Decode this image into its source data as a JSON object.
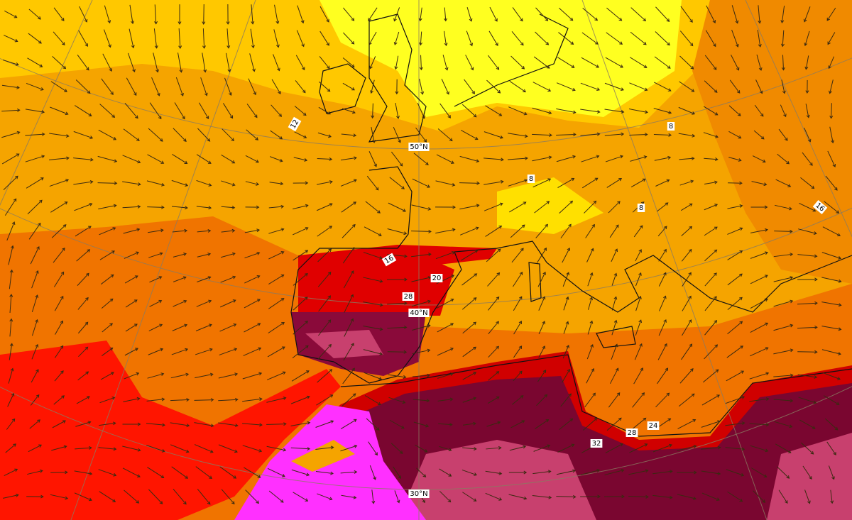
{
  "map": {
    "latitude_labels": [
      "50°N",
      "40°N",
      "30°N"
    ],
    "contour_labels": [
      12,
      8,
      8,
      8,
      16,
      16,
      20,
      28,
      32,
      28,
      24
    ]
  }
}
